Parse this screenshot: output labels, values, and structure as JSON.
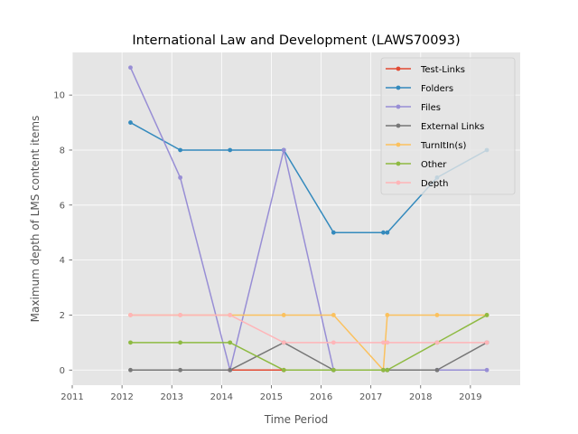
{
  "chart_data": {
    "type": "line",
    "title": "International Law and Development (LAWS70093)",
    "xlabel": "Time Period",
    "ylabel": "Maximum depth of LMS content items",
    "xlim": [
      2011,
      2020
    ],
    "ylim": [
      -0.55,
      11.55
    ],
    "x_ticks": [
      2011,
      2012,
      2013,
      2014,
      2015,
      2016,
      2017,
      2018,
      2019
    ],
    "y_ticks": [
      0,
      2,
      4,
      6,
      8,
      10
    ],
    "grid": true,
    "legend_position": "top-right",
    "marker": "circle",
    "series": [
      {
        "name": "Test-Links",
        "color": "#E24A33",
        "x": [
          2014.17,
          2015.25
        ],
        "y": [
          0,
          0
        ]
      },
      {
        "name": "Folders",
        "color": "#348ABD",
        "x": [
          2012.17,
          2013.17,
          2014.17,
          2015.25,
          2016.25,
          2017.25,
          2017.33,
          2018.33,
          2019.33
        ],
        "y": [
          9,
          8,
          8,
          8,
          5,
          5,
          5,
          7,
          8
        ]
      },
      {
        "name": "Files",
        "color": "#988ED5",
        "x": [
          2012.17,
          2013.17,
          2014.17,
          2015.25,
          2016.25,
          2017.25,
          2017.33,
          2018.33,
          2019.33
        ],
        "y": [
          11,
          7,
          0,
          8,
          0,
          0,
          0,
          0,
          0
        ]
      },
      {
        "name": "External Links",
        "color": "#777777",
        "x": [
          2012.17,
          2013.17,
          2014.17,
          2015.25,
          2016.25,
          2017.25,
          2017.33,
          2018.33,
          2019.33
        ],
        "y": [
          0,
          0,
          0,
          1,
          0,
          0,
          0,
          0,
          1
        ]
      },
      {
        "name": "TurnItIn(s)",
        "color": "#FBC15E",
        "x": [
          2012.17,
          2013.17,
          2014.17,
          2015.25,
          2016.25,
          2017.25,
          2017.33,
          2018.33,
          2019.33
        ],
        "y": [
          2,
          2,
          2,
          2,
          2,
          0,
          2,
          2,
          2
        ]
      },
      {
        "name": "Other",
        "color": "#8EBA42",
        "x": [
          2012.17,
          2013.17,
          2014.17,
          2015.25,
          2016.25,
          2017.25,
          2017.33,
          2018.33,
          2019.33
        ],
        "y": [
          1,
          1,
          1,
          0,
          0,
          0,
          0,
          1,
          2
        ]
      },
      {
        "name": "Depth",
        "color": "#FFB5B8",
        "x": [
          2012.17,
          2013.17,
          2014.17,
          2015.25,
          2016.25,
          2017.25,
          2017.33,
          2018.33,
          2019.33
        ],
        "y": [
          2,
          2,
          2,
          1,
          1,
          1,
          1,
          1,
          1
        ]
      }
    ]
  }
}
